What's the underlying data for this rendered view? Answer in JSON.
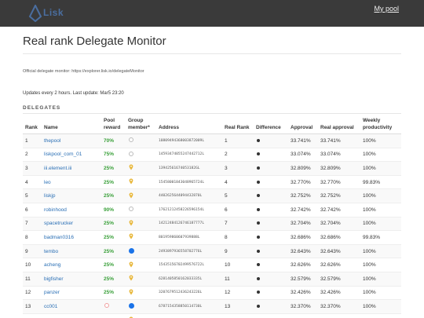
{
  "header": {
    "logo_text": "Lisk",
    "my_pool": "My pool"
  },
  "page": {
    "title": "Real rank Delegate Monitor",
    "official": "Official delegate monitor: https://explorer.lisk.io/delegateMonitor",
    "updates": "Updates every 2 hours. Last update: Mar5 23:20",
    "section": "DELEGATES"
  },
  "table": {
    "headers": {
      "rank": "Rank",
      "name": "Name",
      "reward": "Pool reward",
      "group": "Group member*",
      "address": "Address",
      "real_rank": "Real Rank",
      "difference": "Difference",
      "approval": "Approval",
      "real_approval": "Real approval",
      "productivity": "Weekly productivity"
    },
    "rows": [
      {
        "rank": "1",
        "name": "thepool",
        "reward": "70%",
        "reward_color": "#3aa03a",
        "group": "empty",
        "address": "10809494368003872009L",
        "real_rank": "1",
        "approval": "33.741%",
        "real_approval": "33.741%",
        "productivity": "100%"
      },
      {
        "rank": "2",
        "name": "liskpool_com_01",
        "reward": "75%",
        "reward_color": "#3aa03a",
        "group": "empty",
        "address": "14593474055247442712L",
        "real_rank": "2",
        "approval": "33.074%",
        "real_approval": "33.074%",
        "productivity": "100%"
      },
      {
        "rank": "3",
        "name": "iii.element.iii",
        "reward": "25%",
        "reward_color": "#3aa03a",
        "group": "pin",
        "address": "13942561674053182GL",
        "real_rank": "3",
        "approval": "32.809%",
        "real_approval": "32.809%",
        "productivity": "100%"
      },
      {
        "rank": "4",
        "name": "leo",
        "reward": "25%",
        "reward_color": "#3aa03a",
        "group": "pin",
        "address": "15458001843048965724L",
        "real_rank": "4",
        "approval": "32.770%",
        "real_approval": "32.770%",
        "productivity": "99.83%"
      },
      {
        "rank": "5",
        "name": "liskjp",
        "reward": "25%",
        "reward_color": "#3aa03a",
        "group": "pin",
        "address": "4402625644094432870L",
        "real_rank": "5",
        "approval": "32.752%",
        "real_approval": "32.752%",
        "productivity": "100%"
      },
      {
        "rank": "6",
        "name": "robinhood",
        "reward": "90%",
        "reward_color": "#3aa03a",
        "group": "empty",
        "address": "17621212458226596154L",
        "real_rank": "6",
        "approval": "32.742%",
        "real_approval": "32.742%",
        "productivity": "100%"
      },
      {
        "rank": "7",
        "name": "spacetrucker",
        "reward": "25%",
        "reward_color": "#3aa03a",
        "group": "pin",
        "address": "14212484126746187777L",
        "real_rank": "7",
        "approval": "32.704%",
        "real_approval": "32.704%",
        "productivity": "100%"
      },
      {
        "rank": "8",
        "name": "badman0316",
        "reward": "25%",
        "reward_color": "#3aa03a",
        "group": "pin",
        "address": "801959860607939888L",
        "real_rank": "8",
        "approval": "32.686%",
        "real_approval": "32.686%",
        "productivity": "99.83%"
      },
      {
        "rank": "9",
        "name": "tembo",
        "reward": "25%",
        "reward_color": "#3aa03a",
        "group": "blue",
        "address": "2493897936558702776L",
        "real_rank": "9",
        "approval": "32.643%",
        "real_approval": "32.643%",
        "productivity": "100%"
      },
      {
        "rank": "10",
        "name": "acheng",
        "reward": "25%",
        "reward_color": "#3aa03a",
        "group": "pin",
        "address": "15435156702499576722L",
        "real_rank": "10",
        "approval": "32.626%",
        "real_approval": "32.626%",
        "productivity": "100%"
      },
      {
        "rank": "11",
        "name": "bigfisher",
        "reward": "25%",
        "reward_color": "#3aa03a",
        "group": "pin",
        "address": "6281405850162033335L",
        "real_rank": "11",
        "approval": "32.579%",
        "real_approval": "32.579%",
        "productivity": "100%"
      },
      {
        "rank": "12",
        "name": "panzer",
        "reward": "25%",
        "reward_color": "#3aa03a",
        "group": "pin",
        "address": "3207679512436243226L",
        "real_rank": "12",
        "approval": "32.426%",
        "real_approval": "32.426%",
        "productivity": "100%"
      },
      {
        "rank": "13",
        "name": "cc001",
        "reward": "",
        "reward_color": "#3aa03a",
        "group": "blue",
        "group_reward_icon": "empty-red",
        "address": "6787154358850114730L",
        "real_rank": "13",
        "approval": "32.370%",
        "real_approval": "32.370%",
        "productivity": "100%"
      },
      {
        "rank": "14",
        "name": "rooney",
        "reward": "25%",
        "reward_color": "#3aa03a",
        "group": "pin",
        "address": "6356915781456505636L",
        "real_rank": "14",
        "approval": "32.354%",
        "real_approval": "32.354%",
        "productivity": "100%"
      }
    ]
  }
}
